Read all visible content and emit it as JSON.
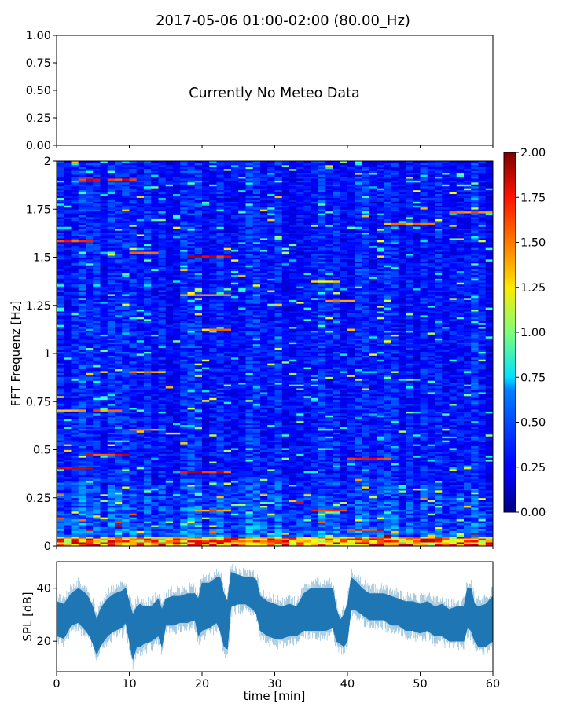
{
  "figure": {
    "title": "2017-05-06 01:00-02:00 (80.00_Hz)"
  },
  "chart_data": [
    {
      "type": "line",
      "panel": "meteo",
      "annotation": "Currently No Meteo Data",
      "ylim": [
        0,
        1
      ],
      "yticks": [
        "0.00",
        "0.25",
        "0.50",
        "0.75",
        "1.00"
      ],
      "xlim": [
        0,
        60
      ],
      "series": []
    },
    {
      "type": "heatmap",
      "panel": "spectrogram",
      "ylabel": "FFT Frequenz [Hz]",
      "xlim": [
        0,
        60
      ],
      "ylim": [
        0,
        2
      ],
      "yticks": [
        "0",
        "0.25",
        "0.5",
        "0.75",
        "1",
        "1.25",
        "1.5",
        "1.75",
        "2"
      ],
      "colormap": "jet",
      "colorbar": {
        "range": [
          0,
          2
        ],
        "ticks": [
          "0.00",
          "0.25",
          "0.50",
          "0.75",
          "1.00",
          "1.25",
          "1.50",
          "1.75",
          "2.00"
        ]
      },
      "background_level": 0.3,
      "low_frequency_band": {
        "freq_max": 0.05,
        "level": 1.9
      },
      "hotspots": [
        {
          "t_start": 3.0,
          "t_end": 6.0,
          "freq": 1.9,
          "level": 1.95
        },
        {
          "t_start": 7.5,
          "t_end": 10.5,
          "freq": 1.9,
          "level": 1.9
        },
        {
          "t_start": 0.0,
          "t_end": 5.0,
          "freq": 1.58,
          "level": 1.8
        },
        {
          "t_start": 10.0,
          "t_end": 14.0,
          "freq": 1.52,
          "level": 1.7
        },
        {
          "t_start": 18.0,
          "t_end": 24.0,
          "freq": 1.5,
          "level": 1.95
        },
        {
          "t_start": 17.0,
          "t_end": 24.0,
          "freq": 1.3,
          "level": 1.7
        },
        {
          "t_start": 20.0,
          "t_end": 23.5,
          "freq": 1.12,
          "level": 1.6
        },
        {
          "t_start": 10.5,
          "t_end": 14.5,
          "freq": 0.9,
          "level": 1.6
        },
        {
          "t_start": 0.0,
          "t_end": 4.0,
          "freq": 0.7,
          "level": 1.6
        },
        {
          "t_start": 5.0,
          "t_end": 8.5,
          "freq": 0.7,
          "level": 1.7
        },
        {
          "t_start": 10.0,
          "t_end": 14.0,
          "freq": 0.6,
          "level": 1.7
        },
        {
          "t_start": 4.0,
          "t_end": 9.5,
          "freq": 0.47,
          "level": 1.9
        },
        {
          "t_start": 0.0,
          "t_end": 5.0,
          "freq": 0.4,
          "level": 1.9
        },
        {
          "t_start": 17.0,
          "t_end": 24.0,
          "freq": 0.38,
          "level": 1.9
        },
        {
          "t_start": 19.0,
          "t_end": 24.0,
          "freq": 0.18,
          "level": 1.7
        },
        {
          "t_start": 35.0,
          "t_end": 40.0,
          "freq": 0.18,
          "level": 1.8
        },
        {
          "t_start": 37.0,
          "t_end": 41.0,
          "freq": 1.27,
          "level": 1.6
        },
        {
          "t_start": 35.0,
          "t_end": 39.0,
          "freq": 1.37,
          "level": 1.5
        },
        {
          "t_start": 40.0,
          "t_end": 46.0,
          "freq": 0.45,
          "level": 1.8
        },
        {
          "t_start": 45.0,
          "t_end": 52.0,
          "freq": 1.67,
          "level": 1.6
        },
        {
          "t_start": 54.0,
          "t_end": 60.0,
          "freq": 1.73,
          "level": 1.7
        },
        {
          "t_start": 40.0,
          "t_end": 45.0,
          "freq": 0.08,
          "level": 1.9
        },
        {
          "t_start": 49.5,
          "t_end": 53.0,
          "freq": 0.02,
          "level": 1.9
        }
      ]
    },
    {
      "type": "area",
      "panel": "spl",
      "ylabel": "SPL [dB]",
      "xlabel": "time [min]",
      "xlim": [
        0,
        60
      ],
      "ylim": [
        8.5,
        50
      ],
      "yticks": [
        20,
        40
      ],
      "xticks": [
        0,
        10,
        20,
        30,
        40,
        50,
        60
      ],
      "color": "#1f77b4",
      "series": [
        {
          "x": [
            0,
            1,
            2,
            3,
            4,
            4.5,
            5,
            5.5,
            6,
            7,
            8,
            9,
            9.5,
            10,
            10.5,
            11,
            11.5,
            12,
            13,
            14,
            14.5,
            15,
            16,
            17,
            18,
            19,
            19.5,
            20,
            21,
            22,
            22.5,
            23,
            23.5,
            24,
            25,
            26,
            27,
            27.5,
            28,
            29,
            30,
            31,
            32,
            33,
            34,
            35,
            36,
            37,
            38,
            38.5,
            39,
            39.5,
            40,
            40.5,
            41,
            42,
            43,
            44,
            45,
            46,
            47,
            48,
            49,
            50,
            51,
            52,
            53,
            54,
            55,
            56,
            56.5,
            57,
            57.5,
            58,
            59,
            60
          ],
          "low": [
            22,
            21,
            26,
            27,
            24,
            22,
            19,
            15,
            18,
            22,
            24,
            25,
            27,
            20,
            13,
            18,
            18,
            19,
            20,
            22,
            18,
            26,
            26,
            27,
            27,
            28,
            22,
            24,
            25,
            27,
            24,
            18,
            17,
            33,
            34,
            34,
            32,
            30,
            24,
            22,
            21,
            21,
            22,
            22,
            24,
            24,
            24,
            24,
            25,
            20,
            19,
            18,
            20,
            32,
            32,
            30,
            28,
            28,
            28,
            26,
            26,
            24,
            24,
            23,
            24,
            22,
            22,
            20,
            20,
            20,
            25,
            24,
            20,
            18,
            18,
            20
          ],
          "high": [
            35,
            34,
            38,
            40,
            38,
            36,
            33,
            28,
            32,
            36,
            38,
            39,
            40,
            35,
            30,
            33,
            34,
            33,
            33,
            36,
            32,
            36,
            37,
            37,
            38,
            38,
            36,
            42,
            42,
            44,
            44,
            38,
            35,
            46,
            45,
            44,
            44,
            43,
            37,
            35,
            34,
            33,
            34,
            33,
            38,
            40,
            40,
            40,
            40,
            32,
            28,
            30,
            34,
            44,
            43,
            40,
            38,
            38,
            38,
            37,
            36,
            35,
            35,
            34,
            35,
            33,
            34,
            32,
            33,
            33,
            40,
            40,
            34,
            33,
            34,
            37
          ]
        }
      ]
    }
  ]
}
